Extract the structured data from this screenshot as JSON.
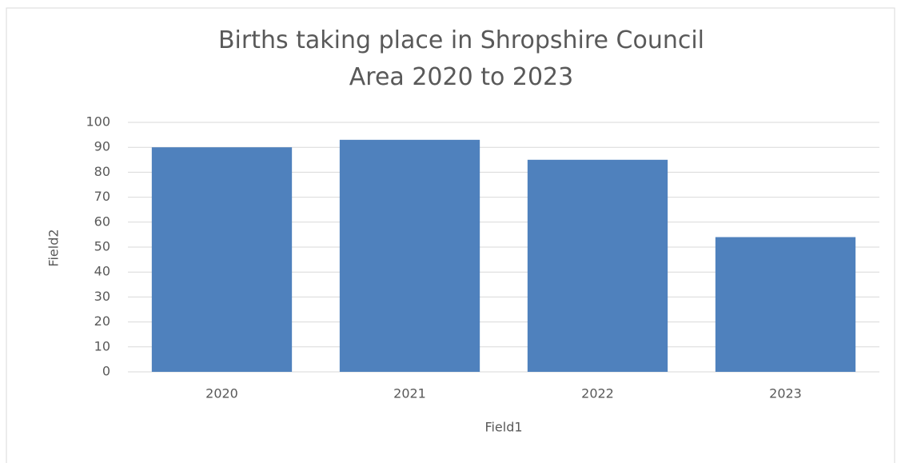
{
  "chart_data": {
    "type": "bar",
    "title": "Births taking place in Shropshire Council Area 2020 to 2023",
    "categories": [
      "2020",
      "2021",
      "2022",
      "2023"
    ],
    "values": [
      90,
      93,
      85,
      54
    ],
    "color": "#4f81bd",
    "xlabel": "Field1",
    "ylabel": "Field2",
    "ylim": [
      0,
      100
    ],
    "yticks": [
      0,
      10,
      20,
      30,
      40,
      50,
      60,
      70,
      80,
      90,
      100
    ],
    "grid": true
  }
}
